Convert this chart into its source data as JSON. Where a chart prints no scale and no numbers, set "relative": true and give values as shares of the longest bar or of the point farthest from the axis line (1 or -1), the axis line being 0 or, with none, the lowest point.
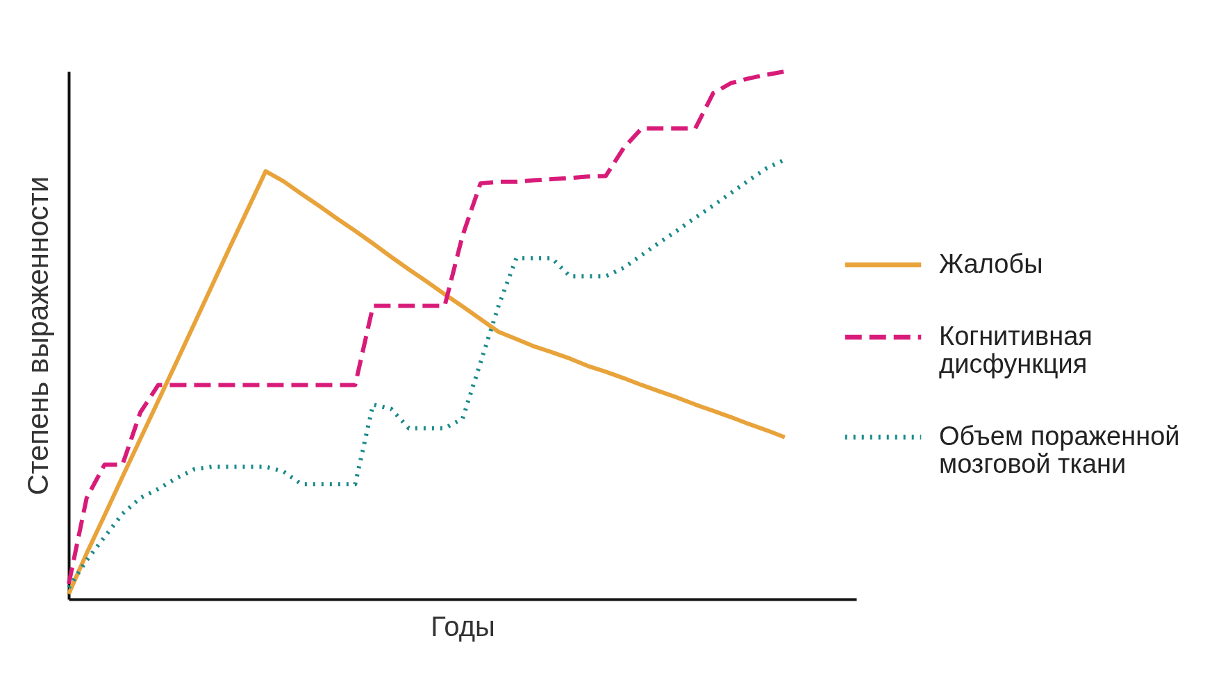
{
  "chart_data": {
    "type": "line",
    "relative": true,
    "xlabel": "Годы",
    "ylabel": "Степень выраженности",
    "categories": [
      null,
      null,
      null,
      null,
      null,
      null,
      null,
      null,
      null,
      null,
      null,
      null,
      null,
      null,
      null,
      null,
      null,
      null,
      null,
      null,
      null,
      null,
      null,
      null,
      null,
      null,
      null,
      null,
      null,
      null,
      null,
      null,
      null,
      null,
      null,
      null,
      null,
      null,
      null,
      null,
      null,
      null,
      null,
      null,
      null
    ],
    "legend": "right",
    "grid": false,
    "marker": "none",
    "series": [
      {
        "name": "Жалобы",
        "color": "#e8a33a",
        "line_style": "solid",
        "values": [
          0.01,
          0.087,
          0.159,
          0.232,
          0.304,
          0.376,
          0.448,
          0.521,
          0.594,
          0.667,
          0.739,
          0.811,
          0.792,
          0.768,
          0.745,
          0.721,
          0.698,
          0.674,
          0.649,
          0.625,
          0.602,
          0.578,
          0.555,
          0.531,
          0.507,
          0.493,
          0.479,
          0.468,
          0.456,
          0.442,
          0.431,
          0.419,
          0.406,
          0.394,
          0.382,
          0.369,
          0.357,
          0.345,
          0.332,
          0.32,
          0.307,
          null,
          null,
          null,
          null
        ]
      },
      {
        "name": "Когнитивная дисфункция",
        "color": "#d81b78",
        "line_style": "dashed",
        "values": [
          0.029,
          0.192,
          0.255,
          0.255,
          0.354,
          0.406,
          0.406,
          0.406,
          0.406,
          0.406,
          0.406,
          0.406,
          0.406,
          0.406,
          0.406,
          0.406,
          0.406,
          0.556,
          0.556,
          0.556,
          0.556,
          0.556,
          0.689,
          0.788,
          0.791,
          0.791,
          0.794,
          0.796,
          0.798,
          0.801,
          0.802,
          0.855,
          0.892,
          0.892,
          0.892,
          0.892,
          0.959,
          0.978,
          0.987,
          0.994,
          1.0,
          null,
          null,
          null,
          null
        ]
      },
      {
        "name": "Объем пораженной мозговой ткани",
        "color": "#1a8a8a",
        "line_style": "dotted",
        "values": [
          0.022,
          0.074,
          0.118,
          0.162,
          0.192,
          0.209,
          0.229,
          0.246,
          0.251,
          0.251,
          0.251,
          0.251,
          0.242,
          0.218,
          0.218,
          0.218,
          0.218,
          0.369,
          0.361,
          0.324,
          0.324,
          0.324,
          0.342,
          0.448,
          0.555,
          0.646,
          0.646,
          0.646,
          0.612,
          0.612,
          0.612,
          0.628,
          0.652,
          0.676,
          0.699,
          0.723,
          0.746,
          0.77,
          0.794,
          0.817,
          0.833,
          null,
          null,
          null,
          null
        ]
      }
    ]
  }
}
